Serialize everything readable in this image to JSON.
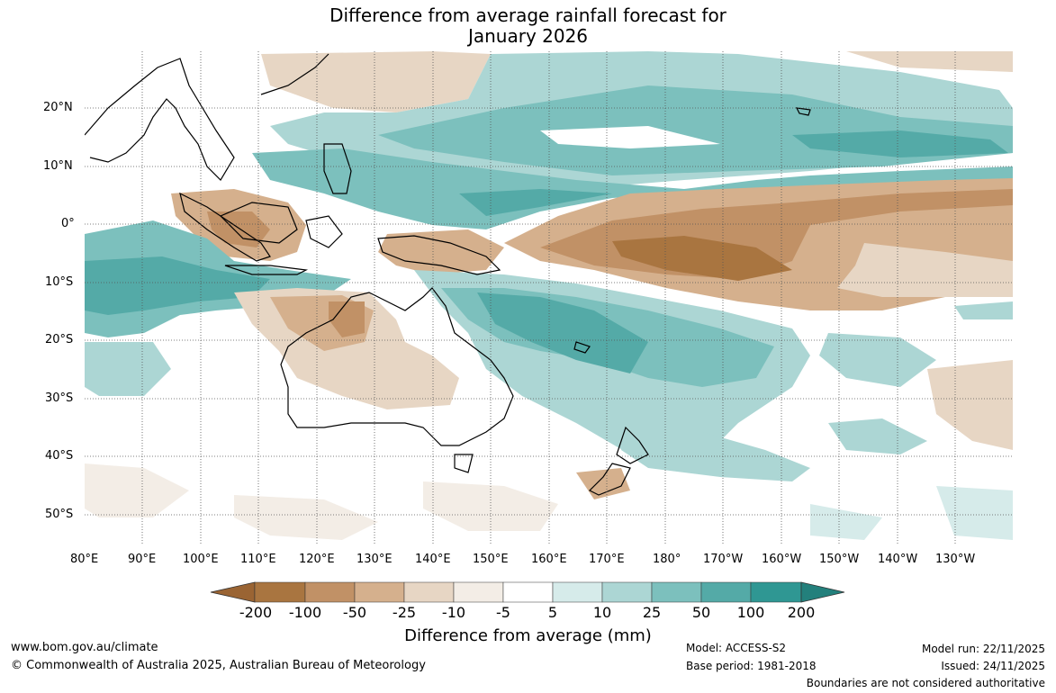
{
  "title_line1": "Difference from average rainfall forecast for",
  "title_line2": "January 2026",
  "lon_labels": [
    "80°E",
    "90°E",
    "100°E",
    "110°E",
    "120°E",
    "130°E",
    "140°E",
    "150°E",
    "160°E",
    "170°E",
    "180°",
    "170°W",
    "160°W",
    "150°W",
    "140°W",
    "130°W"
  ],
  "lat_labels": [
    "20°N",
    "10°N",
    "0°",
    "10°S",
    "20°S",
    "30°S",
    "40°S",
    "50°S"
  ],
  "legend": {
    "ticks": [
      "-200",
      "-100",
      "-50",
      "-25",
      "-10",
      "-5",
      "5",
      "10",
      "25",
      "50",
      "100",
      "200"
    ],
    "colors": [
      "#9a6433",
      "#a97540",
      "#c19166",
      "#d5b08d",
      "#e7d6c4",
      "#f3ede6",
      "#ffffff",
      "#d6ebea",
      "#acd6d4",
      "#7cc0bd",
      "#54aaa7",
      "#2f9793",
      "#23807c"
    ],
    "title": "Difference from average (mm)"
  },
  "footer": {
    "website": "www.bom.gov.au/climate",
    "copyright": "© Commonwealth of Australia 2025, Australian Bureau of Meteorology",
    "model": "Model: ACCESS-S2",
    "base_period": "Base period: 1981-2018",
    "model_run": "Model run: 22/11/2025",
    "issued": "Issued: 24/11/2025",
    "disclaimer": "Boundaries are not considered authoritative"
  }
}
